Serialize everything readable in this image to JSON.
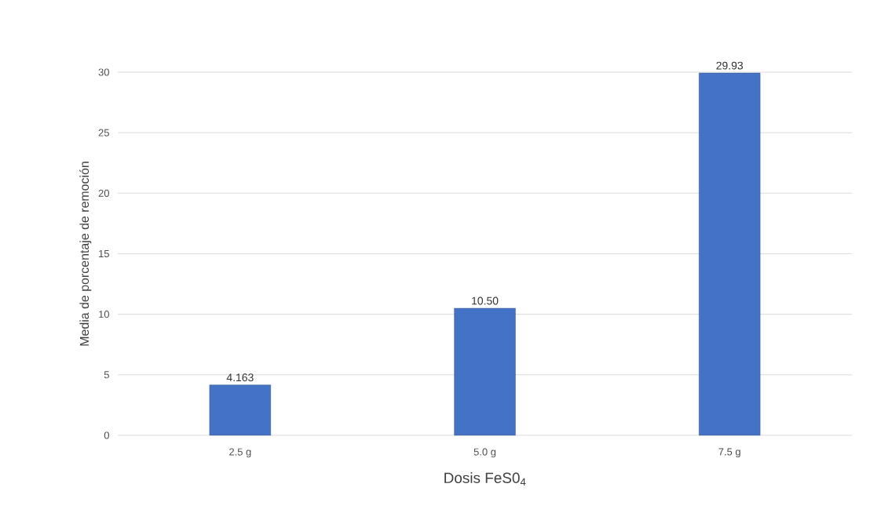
{
  "chart_data": {
    "type": "bar",
    "xlabel": "Dosis FeS0$_{4}$",
    "ylabel": "Media de porcentaje de remoción",
    "categories": [
      "2.5 g",
      "5.0 g",
      "7.5 g"
    ],
    "values": [
      4.163,
      10.5,
      29.93
    ],
    "value_labels": [
      "4.163",
      "10.50",
      "29.93"
    ],
    "color": "#4472c4",
    "ylim": [
      0,
      30
    ],
    "yticks": [
      0,
      5,
      10,
      15,
      20,
      25,
      30
    ],
    "grid": "y"
  }
}
